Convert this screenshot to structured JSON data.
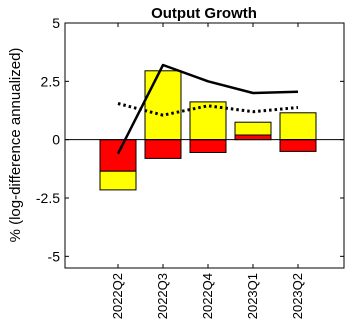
{
  "chart_data": {
    "type": "bar",
    "title": "Output Growth",
    "ylabel": "% (log-difference annualized)",
    "xlabel": "",
    "ylim": [
      -5.5,
      5
    ],
    "yticks": [
      {
        "value": 5,
        "label": "5"
      },
      {
        "value": 2.5,
        "label": "2.5"
      },
      {
        "value": 0,
        "label": "0"
      },
      {
        "value": -2.5,
        "label": "-2.5"
      },
      {
        "value": -5,
        "label": "-5"
      }
    ],
    "categories": [
      "2022Q2",
      "2022Q3",
      "2022Q4",
      "2023Q1",
      "2023Q2"
    ],
    "stacked": true,
    "series": [
      {
        "color": "#ff0000",
        "values": [
          -1.35,
          -0.8,
          -0.55,
          0.2,
          -0.5
        ]
      },
      {
        "color": "#ffff00",
        "values": [
          -0.8,
          2.95,
          1.62,
          0.55,
          1.15
        ]
      }
    ],
    "lines": [
      {
        "style": "solid",
        "color": "#000000",
        "values": [
          -0.6,
          3.2,
          2.5,
          2.0,
          2.05
        ]
      },
      {
        "style": "dotted",
        "color": "#000000",
        "values": [
          1.55,
          1.05,
          1.45,
          1.2,
          1.38
        ]
      }
    ],
    "zero_line": true,
    "grid": false,
    "legend": "none"
  }
}
